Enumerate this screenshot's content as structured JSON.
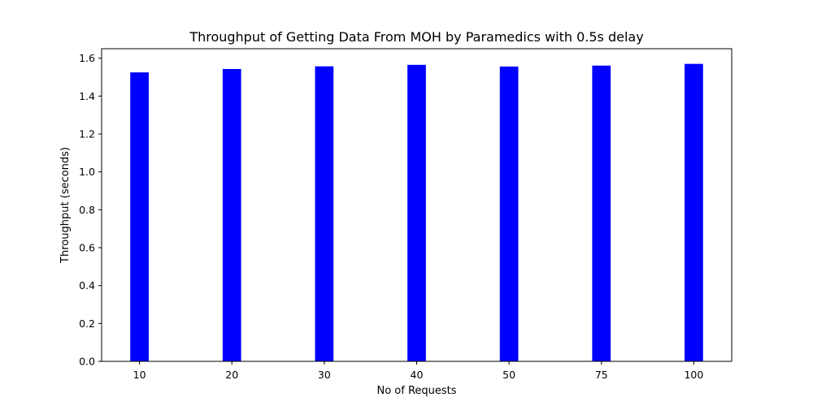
{
  "chart_data": {
    "type": "bar",
    "title": "Throughput of Getting Data From MOH by Paramedics with 0.5s delay",
    "xlabel": "No of Requests",
    "ylabel": "Throughput (seconds)",
    "categories": [
      "10",
      "20",
      "30",
      "40",
      "50",
      "75",
      "100"
    ],
    "values": [
      1.525,
      1.543,
      1.557,
      1.565,
      1.556,
      1.561,
      1.57
    ],
    "ylim": [
      0,
      1.65
    ],
    "yticks": [
      "0.0",
      "0.2",
      "0.4",
      "0.6",
      "0.8",
      "1.0",
      "1.2",
      "1.4",
      "1.6"
    ],
    "bar_color": "#0000ff",
    "grid": false,
    "legend": "none"
  }
}
